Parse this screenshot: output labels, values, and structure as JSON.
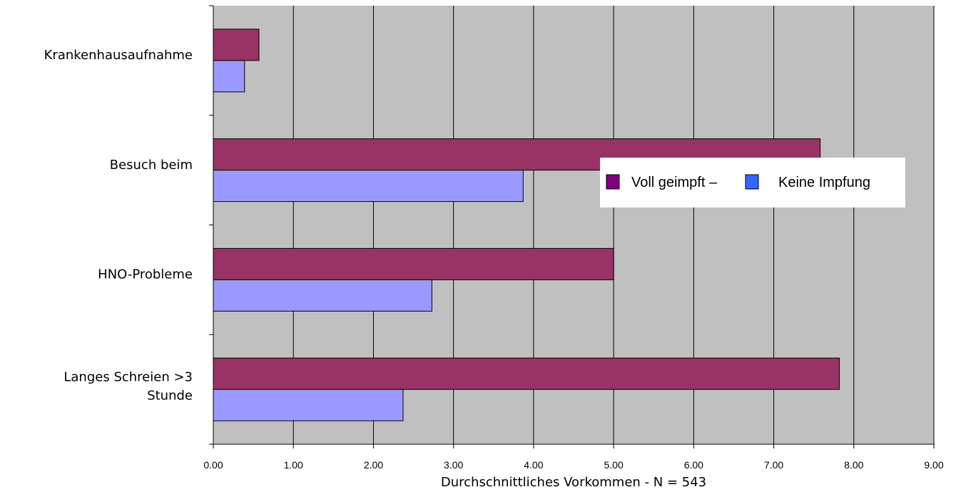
{
  "chart_data": {
    "type": "bar",
    "orientation": "horizontal",
    "categories": [
      [
        "Krankenhausaufnahme"
      ],
      [
        "Besuch beim"
      ],
      [
        "HNO-Probleme"
      ],
      [
        "Langes Schreien >3",
        "Stunde"
      ]
    ],
    "series": [
      {
        "name": "Voll geimpft –",
        "color": "#993366",
        "values": [
          0.57,
          7.58,
          5.0,
          7.82
        ]
      },
      {
        "name": "Keine Impfung",
        "color": "#9999ff",
        "values": [
          0.39,
          3.87,
          2.73,
          2.37
        ]
      }
    ],
    "legend_swatch_colors": [
      "#800080",
      "#3366ff"
    ],
    "xlabel": "Durchschnittliches Vorkommen - N = 543",
    "xlim": [
      0,
      9
    ],
    "xticks": [
      "0.00",
      "1.00",
      "2.00",
      "3.00",
      "4.00",
      "5.00",
      "6.00",
      "7.00",
      "8.00",
      "9.00"
    ],
    "grid": true,
    "plot_background": "#c0c0c0",
    "legend_position": "right, upper-middle"
  }
}
